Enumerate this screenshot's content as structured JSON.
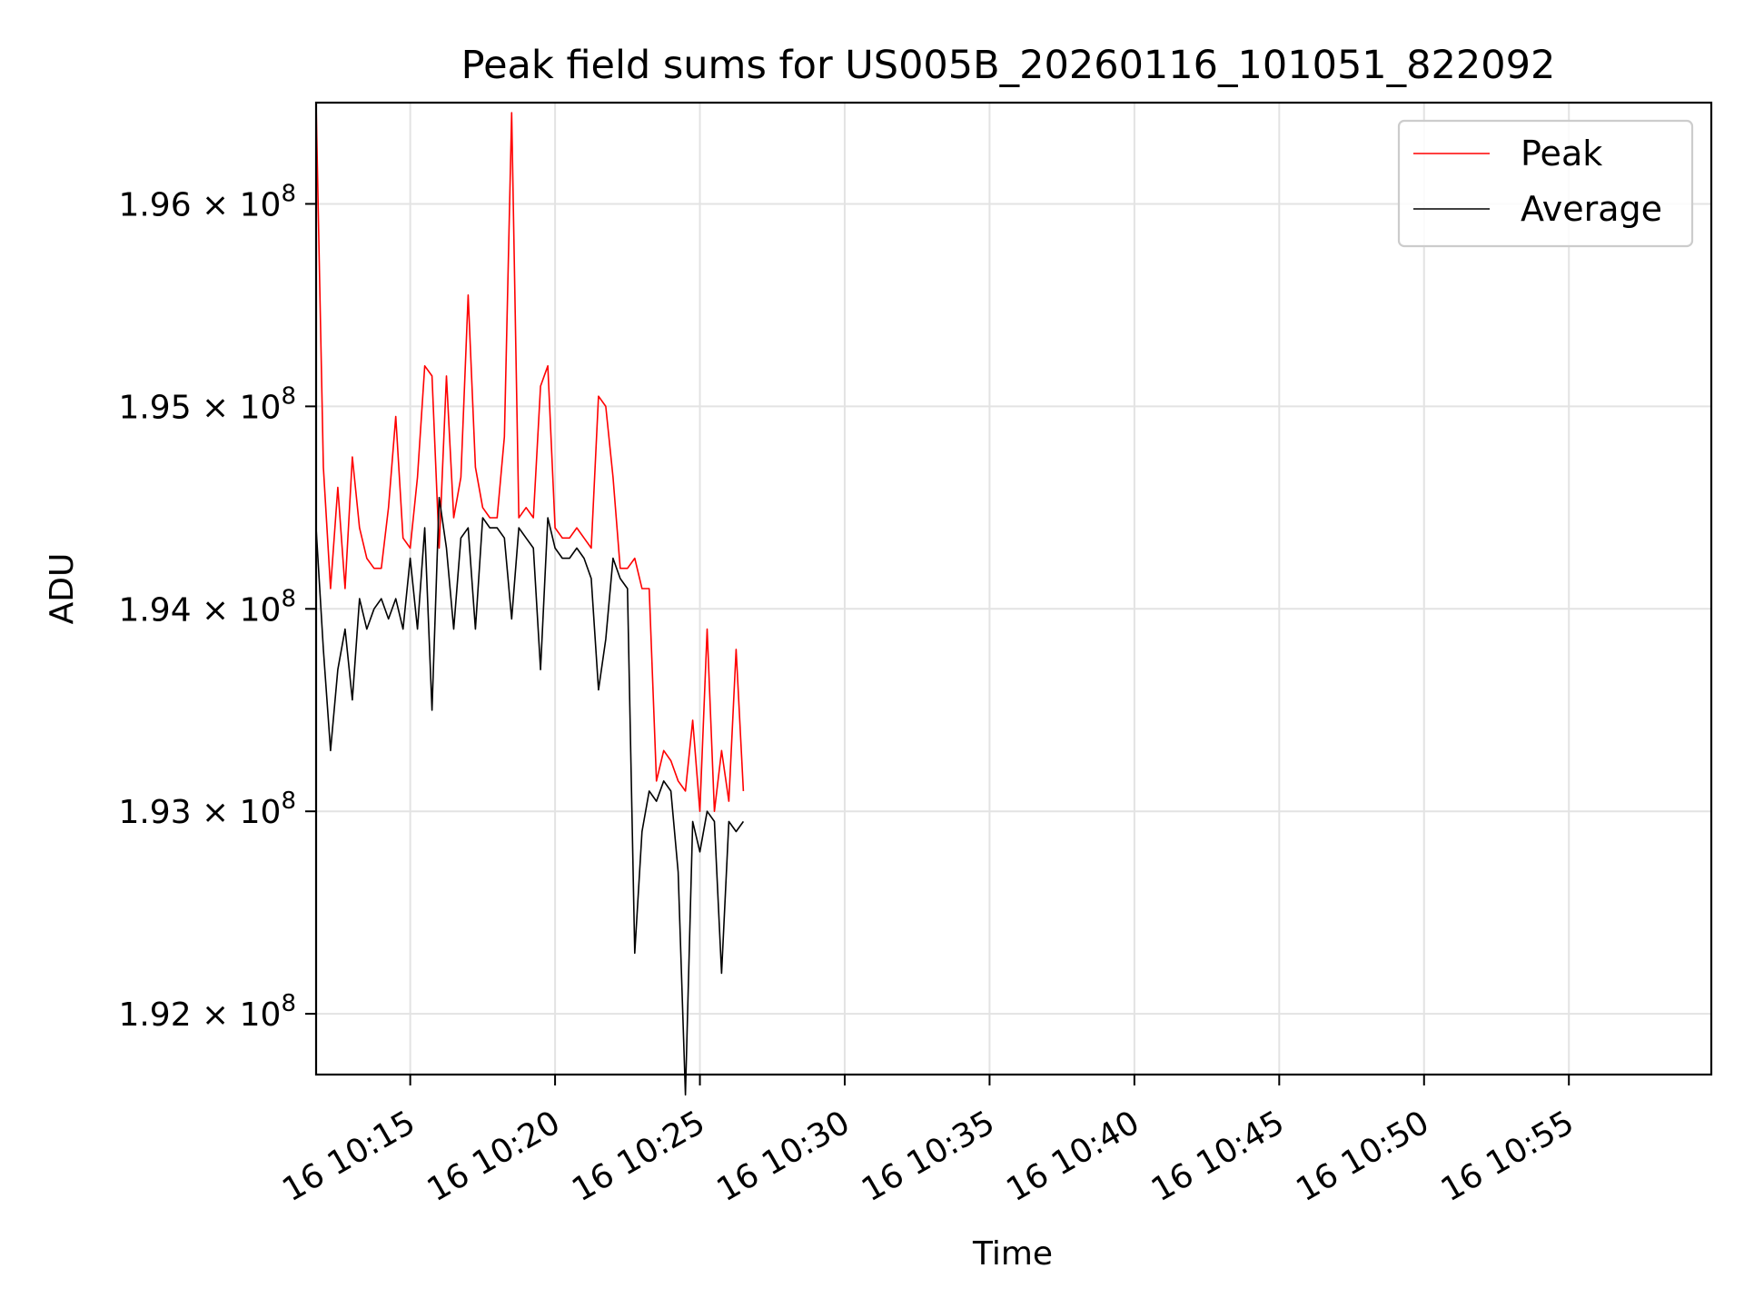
{
  "chart_data": {
    "type": "line",
    "title": "Peak field sums for US005B_20260116_101051_822092",
    "xlabel": "Time",
    "ylabel": "ADU",
    "x_start": "10:11:45",
    "x_end": "10:59:55",
    "xlim": [
      "10:11:45",
      "10:59:55"
    ],
    "ylim": [
      191700000,
      196500000
    ],
    "xticks": [
      {
        "time": "10:15",
        "label": "16 10:15"
      },
      {
        "time": "10:20",
        "label": "16 10:20"
      },
      {
        "time": "10:25",
        "label": "16 10:25"
      },
      {
        "time": "10:30",
        "label": "16 10:30"
      },
      {
        "time": "10:35",
        "label": "16 10:35"
      },
      {
        "time": "10:40",
        "label": "16 10:40"
      },
      {
        "time": "10:45",
        "label": "16 10:45"
      },
      {
        "time": "10:50",
        "label": "16 10:50"
      },
      {
        "time": "10:55",
        "label": "16 10:55"
      }
    ],
    "yticks": [
      {
        "value": 192000000,
        "mantissa": "1.92",
        "exponent": "8"
      },
      {
        "value": 193000000,
        "mantissa": "1.93",
        "exponent": "8"
      },
      {
        "value": 194000000,
        "mantissa": "1.94",
        "exponent": "8"
      },
      {
        "value": 195000000,
        "mantissa": "1.95",
        "exponent": "8"
      },
      {
        "value": 196000000,
        "mantissa": "1.96",
        "exponent": "8"
      }
    ],
    "grid": true,
    "legend_position": "top-right",
    "series": [
      {
        "name": "Peak",
        "color": "#ff0000",
        "points": [
          [
            "10:11:45",
            196500000
          ],
          [
            "10:12:00",
            194700000
          ],
          [
            "10:12:15",
            194100000
          ],
          [
            "10:12:30",
            194600000
          ],
          [
            "10:12:45",
            194100000
          ],
          [
            "10:13:00",
            194750000
          ],
          [
            "10:13:15",
            194400000
          ],
          [
            "10:13:30",
            194250000
          ],
          [
            "10:13:45",
            194200000
          ],
          [
            "10:14:00",
            194200000
          ],
          [
            "10:14:15",
            194500000
          ],
          [
            "10:14:30",
            194950000
          ],
          [
            "10:14:45",
            194350000
          ],
          [
            "10:15:00",
            194300000
          ],
          [
            "10:15:15",
            194650000
          ],
          [
            "10:15:30",
            195200000
          ],
          [
            "10:15:45",
            195150000
          ],
          [
            "10:16:00",
            194300000
          ],
          [
            "10:16:15",
            195150000
          ],
          [
            "10:16:30",
            194450000
          ],
          [
            "10:16:45",
            194650000
          ],
          [
            "10:17:00",
            195550000
          ],
          [
            "10:17:15",
            194700000
          ],
          [
            "10:17:30",
            194500000
          ],
          [
            "10:17:45",
            194450000
          ],
          [
            "10:18:00",
            194450000
          ],
          [
            "10:18:15",
            194850000
          ],
          [
            "10:18:30",
            196450000
          ],
          [
            "10:18:45",
            194450000
          ],
          [
            "10:19:00",
            194500000
          ],
          [
            "10:19:15",
            194450000
          ],
          [
            "10:19:30",
            195100000
          ],
          [
            "10:19:45",
            195200000
          ],
          [
            "10:20:00",
            194400000
          ],
          [
            "10:20:15",
            194350000
          ],
          [
            "10:20:30",
            194350000
          ],
          [
            "10:20:45",
            194400000
          ],
          [
            "10:21:00",
            194350000
          ],
          [
            "10:21:15",
            194300000
          ],
          [
            "10:21:30",
            195050000
          ],
          [
            "10:21:45",
            195000000
          ],
          [
            "10:22:00",
            194650000
          ],
          [
            "10:22:15",
            194200000
          ],
          [
            "10:22:30",
            194200000
          ],
          [
            "10:22:45",
            194250000
          ],
          [
            "10:23:00",
            194100000
          ],
          [
            "10:23:15",
            194100000
          ],
          [
            "10:23:30",
            193150000
          ],
          [
            "10:23:45",
            193300000
          ],
          [
            "10:24:00",
            193250000
          ],
          [
            "10:24:15",
            193150000
          ],
          [
            "10:24:30",
            193100000
          ],
          [
            "10:24:45",
            193450000
          ],
          [
            "10:25:00",
            193000000
          ],
          [
            "10:25:15",
            193900000
          ],
          [
            "10:25:30",
            193000000
          ],
          [
            "10:25:45",
            193300000
          ],
          [
            "10:26:00",
            193050000
          ],
          [
            "10:26:15",
            193800000
          ],
          [
            "10:26:30",
            193100000
          ]
        ]
      },
      {
        "name": "Average",
        "color": "#000000",
        "points": [
          [
            "10:11:45",
            194400000
          ],
          [
            "10:12:00",
            193800000
          ],
          [
            "10:12:15",
            193300000
          ],
          [
            "10:12:30",
            193700000
          ],
          [
            "10:12:45",
            193900000
          ],
          [
            "10:13:00",
            193550000
          ],
          [
            "10:13:15",
            194050000
          ],
          [
            "10:13:30",
            193900000
          ],
          [
            "10:13:45",
            194000000
          ],
          [
            "10:14:00",
            194050000
          ],
          [
            "10:14:15",
            193950000
          ],
          [
            "10:14:30",
            194050000
          ],
          [
            "10:14:45",
            193900000
          ],
          [
            "10:15:00",
            194250000
          ],
          [
            "10:15:15",
            193900000
          ],
          [
            "10:15:30",
            194400000
          ],
          [
            "10:15:45",
            193500000
          ],
          [
            "10:16:00",
            194550000
          ],
          [
            "10:16:15",
            194300000
          ],
          [
            "10:16:30",
            193900000
          ],
          [
            "10:16:45",
            194350000
          ],
          [
            "10:17:00",
            194400000
          ],
          [
            "10:17:15",
            193900000
          ],
          [
            "10:17:30",
            194450000
          ],
          [
            "10:17:45",
            194400000
          ],
          [
            "10:18:00",
            194400000
          ],
          [
            "10:18:15",
            194350000
          ],
          [
            "10:18:30",
            193950000
          ],
          [
            "10:18:45",
            194400000
          ],
          [
            "10:19:00",
            194350000
          ],
          [
            "10:19:15",
            194300000
          ],
          [
            "10:19:30",
            193700000
          ],
          [
            "10:19:45",
            194450000
          ],
          [
            "10:20:00",
            194300000
          ],
          [
            "10:20:15",
            194250000
          ],
          [
            "10:20:30",
            194250000
          ],
          [
            "10:20:45",
            194300000
          ],
          [
            "10:21:00",
            194250000
          ],
          [
            "10:21:15",
            194150000
          ],
          [
            "10:21:30",
            193600000
          ],
          [
            "10:21:45",
            193850000
          ],
          [
            "10:22:00",
            194250000
          ],
          [
            "10:22:15",
            194150000
          ],
          [
            "10:22:30",
            194100000
          ],
          [
            "10:22:45",
            192300000
          ],
          [
            "10:23:00",
            192900000
          ],
          [
            "10:23:15",
            193100000
          ],
          [
            "10:23:30",
            193050000
          ],
          [
            "10:23:45",
            193150000
          ],
          [
            "10:24:00",
            193100000
          ],
          [
            "10:24:15",
            192700000
          ],
          [
            "10:24:30",
            191600000
          ],
          [
            "10:24:45",
            192950000
          ],
          [
            "10:25:00",
            192800000
          ],
          [
            "10:25:15",
            193000000
          ],
          [
            "10:25:30",
            192950000
          ],
          [
            "10:25:45",
            192200000
          ],
          [
            "10:26:00",
            192950000
          ],
          [
            "10:26:15",
            192900000
          ],
          [
            "10:26:30",
            192950000
          ]
        ]
      }
    ],
    "legend": [
      {
        "label": "Peak",
        "color": "#ff0000"
      },
      {
        "label": "Average",
        "color": "#000000"
      }
    ]
  }
}
